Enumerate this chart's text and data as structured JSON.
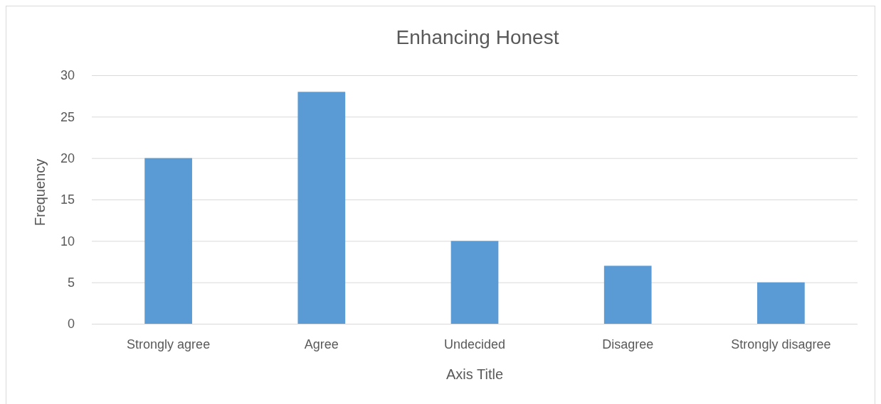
{
  "chart_data": {
    "type": "bar",
    "title": "Enhancing Honest",
    "xlabel": "Axis Title",
    "ylabel": "Frequency",
    "categories": [
      "Strongly agree",
      "Agree",
      "Undecided",
      "Disagree",
      "Strongly disagree"
    ],
    "values": [
      20,
      28,
      10,
      7,
      5
    ],
    "color": "#5b9bd5",
    "ylim": [
      0,
      30
    ],
    "yticks": [
      0,
      5,
      10,
      15,
      20,
      25,
      30
    ],
    "grid": "y"
  }
}
